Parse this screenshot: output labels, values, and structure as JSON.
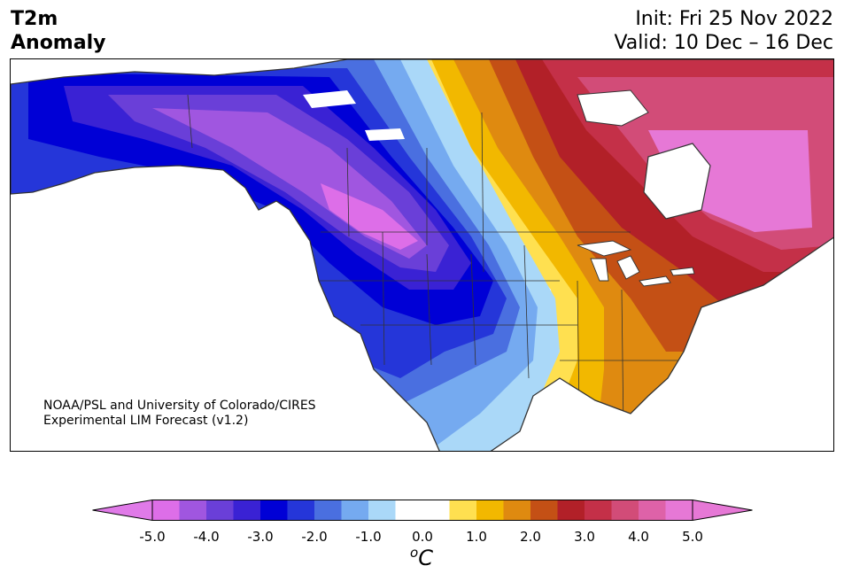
{
  "header": {
    "title_line1": "T2m",
    "title_line2": "Anomaly",
    "init": "Init: Fri 25 Nov 2022",
    "valid": "Valid: 10 Dec – 16 Dec"
  },
  "credit": {
    "line1": "NOAA/PSL and University of Colorado/CIRES",
    "line2": "Experimental LIM Forecast (v1.2)"
  },
  "colorbar": {
    "unit_base": "C",
    "unit_super": "o",
    "ticks": [
      "-5.0",
      "-4.0",
      "-3.0",
      "-2.0",
      "-1.0",
      "0.0",
      "1.0",
      "2.0",
      "3.0",
      "4.0",
      "5.0"
    ],
    "tick_values": [
      -5,
      -4,
      -3,
      -2,
      -1,
      0,
      1,
      2,
      3,
      4,
      5
    ],
    "bins": [
      -4.5,
      -4.0,
      -3.5,
      -3.0,
      -2.5,
      -2.0,
      -1.5,
      -1.0,
      -0.5,
      0.0,
      0.5,
      1.0,
      1.5,
      2.0,
      2.5,
      3.0,
      3.5,
      4.0,
      4.5,
      5.0
    ],
    "colors": [
      "#dd6ee8",
      "#a056e0",
      "#6a3fd8",
      "#3a22d4",
      "#0000d6",
      "#2536d9",
      "#4a6fe0",
      "#75aaf0",
      "#aad8f8",
      "#ffffff",
      "#ffffff",
      "#ffe050",
      "#f2b800",
      "#df8a10",
      "#c45015",
      "#b22028",
      "#c43048",
      "#d24c78",
      "#de62a8",
      "#e678d6"
    ],
    "under_color": "#e07ae8",
    "over_color": "#e678d6",
    "vmin": -5,
    "vmax": 5
  }
}
